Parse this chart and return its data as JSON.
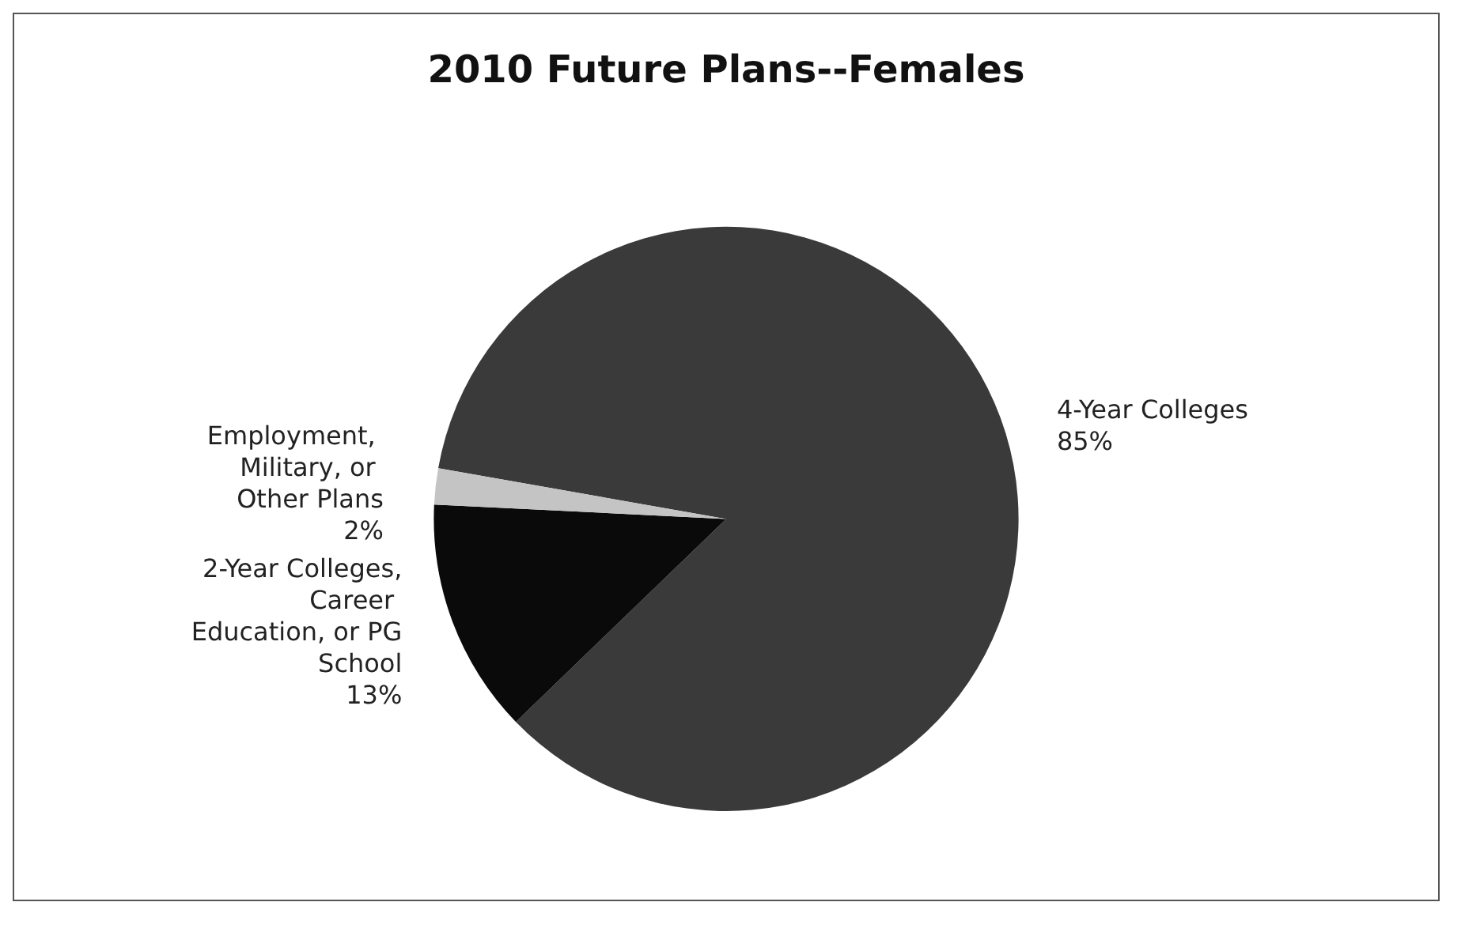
{
  "chart_data": {
    "type": "pie",
    "title": "2010 Future Plans--Females",
    "categories": [
      "4-Year Colleges",
      "2-Year Colleges, Career Education, or PG School",
      "Employment, Military, or Other Plans"
    ],
    "values": [
      85,
      13,
      2
    ],
    "value_labels": [
      "85%",
      "13%",
      "2%"
    ],
    "colors": [
      "#3a3a3a",
      "#0a0a0a",
      "#c4c4c4"
    ],
    "legend": false
  }
}
